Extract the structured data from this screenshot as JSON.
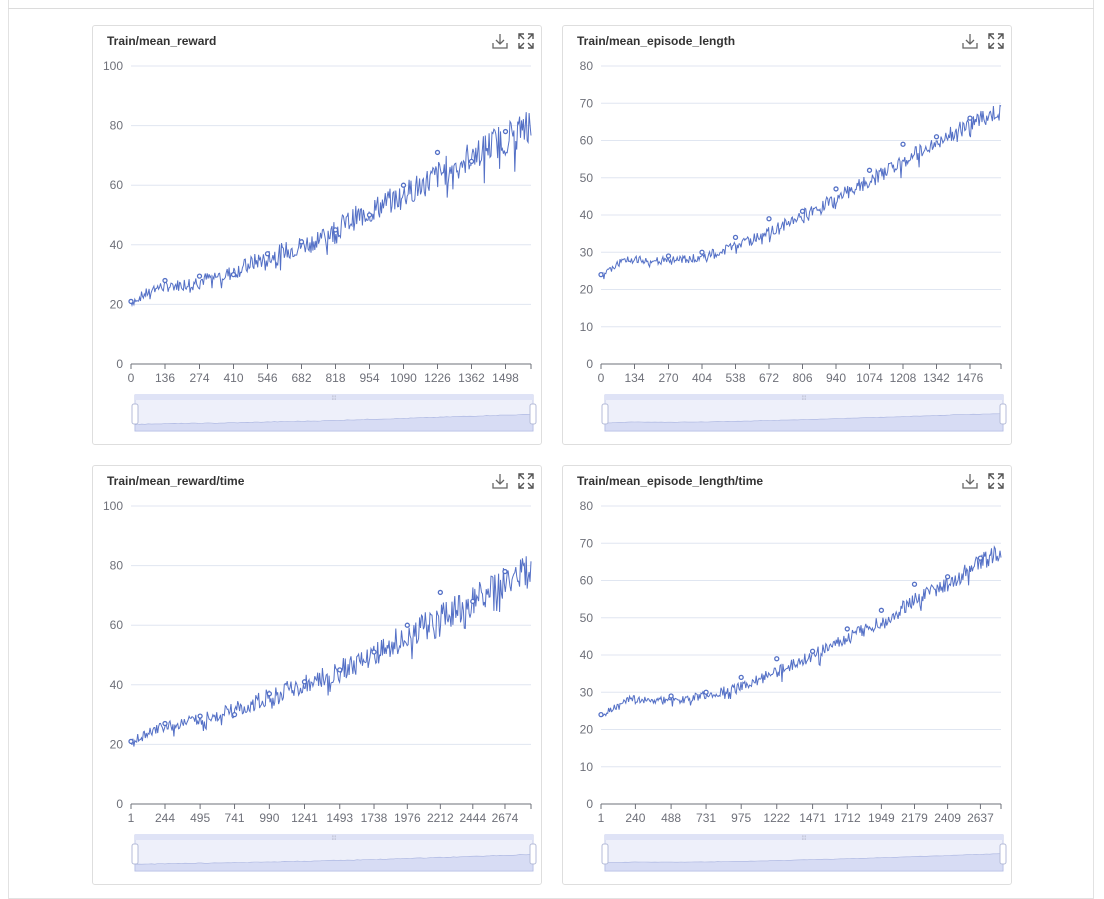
{
  "icons": {
    "download": "download-icon",
    "fullscreen": "fullscreen-icon"
  },
  "colors": {
    "series": "#5470c6",
    "grid": "#e0e6f1",
    "axis": "#6e7079",
    "zoom_fill": "#d7dcf4",
    "zoom_border": "#c5cbe8"
  },
  "chart_data": [
    {
      "type": "line",
      "title": "Train/mean_reward",
      "xlabel": "",
      "ylabel": "",
      "ylim": [
        0,
        100
      ],
      "yticks": [
        0,
        20,
        40,
        60,
        80,
        100
      ],
      "xlim": [
        0,
        1600
      ],
      "xticks": [
        0,
        136,
        274,
        410,
        546,
        682,
        818,
        954,
        1090,
        1226,
        1362,
        1498
      ],
      "grid": true,
      "has_zoom_slider": true,
      "series": [
        {
          "x": [
            0,
            100,
            200,
            300,
            400,
            500,
            600,
            700,
            800,
            900,
            1000,
            1100,
            1200,
            1300,
            1400,
            1500,
            1600
          ],
          "y": [
            21,
            26,
            27,
            29,
            31,
            35,
            38,
            41,
            45,
            50,
            54,
            58,
            63,
            68,
            73,
            77,
            82
          ],
          "noise": [
            1.5,
            6
          ],
          "markers": [
            [
              0,
              21
            ],
            [
              136,
              28
            ],
            [
              274,
              29.5
            ],
            [
              410,
              30
            ],
            [
              546,
              37
            ],
            [
              682,
              41
            ],
            [
              818,
              45
            ],
            [
              954,
              50
            ],
            [
              1090,
              60
            ],
            [
              1226,
              71
            ],
            [
              1362,
              68
            ],
            [
              1498,
              78
            ]
          ]
        }
      ]
    },
    {
      "type": "line",
      "title": "Train/mean_episode_length",
      "xlabel": "",
      "ylabel": "",
      "ylim": [
        0,
        80
      ],
      "yticks": [
        0,
        10,
        20,
        30,
        40,
        50,
        60,
        70,
        80
      ],
      "xlim": [
        0,
        1600
      ],
      "xticks": [
        0,
        134,
        270,
        404,
        538,
        672,
        806,
        940,
        1074,
        1208,
        1342,
        1476
      ],
      "grid": true,
      "has_zoom_slider": true,
      "series": [
        {
          "x": [
            0,
            100,
            200,
            300,
            400,
            500,
            600,
            700,
            800,
            900,
            1000,
            1100,
            1200,
            1300,
            1400,
            1500,
            1600
          ],
          "y": [
            24,
            28.5,
            28,
            28,
            29,
            31,
            33.5,
            36.5,
            40,
            43.5,
            47,
            50.5,
            54.5,
            58.5,
            62.5,
            65.5,
            68.5
          ],
          "noise": [
            0.8,
            2.5
          ],
          "markers": [
            [
              0,
              24
            ],
            [
              270,
              29
            ],
            [
              404,
              30
            ],
            [
              538,
              34
            ],
            [
              672,
              39
            ],
            [
              806,
              41
            ],
            [
              940,
              47
            ],
            [
              1074,
              52
            ],
            [
              1208,
              59
            ],
            [
              1342,
              61
            ],
            [
              1476,
              66
            ]
          ]
        }
      ]
    },
    {
      "type": "line",
      "title": "Train/mean_reward/time",
      "xlabel": "",
      "ylabel": "",
      "ylim": [
        0,
        100
      ],
      "yticks": [
        0,
        20,
        40,
        60,
        80,
        100
      ],
      "xlim": [
        1,
        2860
      ],
      "xticks": [
        1,
        244,
        495,
        741,
        990,
        1241,
        1493,
        1738,
        1976,
        2212,
        2444,
        2674
      ],
      "grid": true,
      "has_zoom_slider": true,
      "series": [
        {
          "x": [
            1,
            200,
            400,
            600,
            800,
            1000,
            1200,
            1400,
            1600,
            1800,
            2000,
            2200,
            2400,
            2600,
            2860
          ],
          "y": [
            21,
            26,
            28,
            30,
            33,
            37,
            40,
            44,
            48,
            53,
            58,
            63,
            68,
            73,
            81
          ],
          "noise": [
            1.5,
            6
          ],
          "markers": [
            [
              1,
              21
            ],
            [
              244,
              27
            ],
            [
              495,
              29.5
            ],
            [
              741,
              30
            ],
            [
              990,
              37
            ],
            [
              1241,
              41
            ],
            [
              1493,
              45
            ],
            [
              1738,
              51
            ],
            [
              1976,
              60
            ],
            [
              2212,
              71
            ],
            [
              2444,
              68
            ],
            [
              2674,
              78
            ]
          ]
        }
      ]
    },
    {
      "type": "line",
      "title": "Train/mean_episode_length/time",
      "xlabel": "",
      "ylabel": "",
      "ylim": [
        0,
        80
      ],
      "yticks": [
        0,
        10,
        20,
        30,
        40,
        50,
        60,
        70,
        80
      ],
      "xlim": [
        1,
        2780
      ],
      "xticks": [
        1,
        240,
        488,
        731,
        975,
        1222,
        1471,
        1712,
        1949,
        2179,
        2409,
        2637
      ],
      "grid": true,
      "has_zoom_slider": true,
      "series": [
        {
          "x": [
            1,
            200,
            400,
            600,
            800,
            1000,
            1200,
            1400,
            1600,
            1800,
            2000,
            2200,
            2400,
            2600,
            2780
          ],
          "y": [
            24,
            28.5,
            28,
            28.5,
            30,
            32,
            35.5,
            39,
            42.5,
            46.5,
            50.5,
            55.5,
            59.5,
            64.5,
            68.5
          ],
          "noise": [
            0.8,
            2.5
          ],
          "markers": [
            [
              1,
              24
            ],
            [
              488,
              29
            ],
            [
              731,
              30
            ],
            [
              975,
              34
            ],
            [
              1222,
              39
            ],
            [
              1471,
              41
            ],
            [
              1712,
              47
            ],
            [
              1949,
              52
            ],
            [
              2179,
              59
            ],
            [
              2409,
              61
            ],
            [
              2637,
              66
            ]
          ]
        }
      ]
    }
  ]
}
